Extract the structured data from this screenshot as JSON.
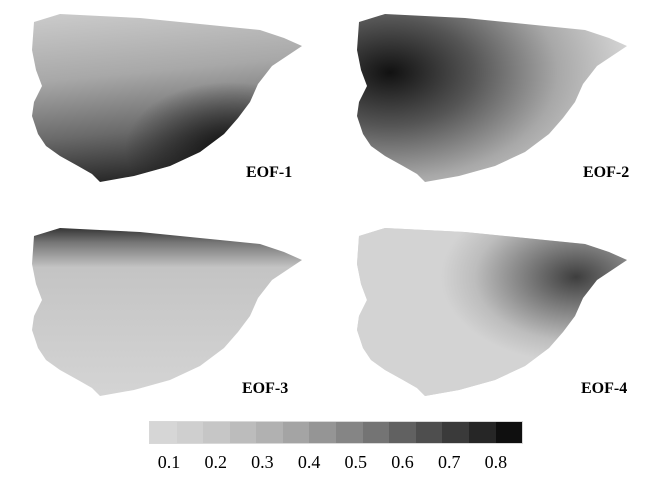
{
  "panels": [
    {
      "label": "EOF-1"
    },
    {
      "label": "EOF-2"
    },
    {
      "label": "EOF-3"
    },
    {
      "label": "EOF-4"
    }
  ],
  "colorbar": {
    "levels": [
      "#d6d6d6",
      "#cfcfcf",
      "#c6c6c6",
      "#bcbcbc",
      "#b1b1b1",
      "#a4a4a4",
      "#959595",
      "#858585",
      "#747474",
      "#616161",
      "#4e4e4e",
      "#3a3a3a",
      "#262626",
      "#0f0f0f"
    ],
    "ticks": [
      "0.1",
      "0.2",
      "0.3",
      "0.4",
      "0.5",
      "0.6",
      "0.7",
      "0.8"
    ]
  }
}
